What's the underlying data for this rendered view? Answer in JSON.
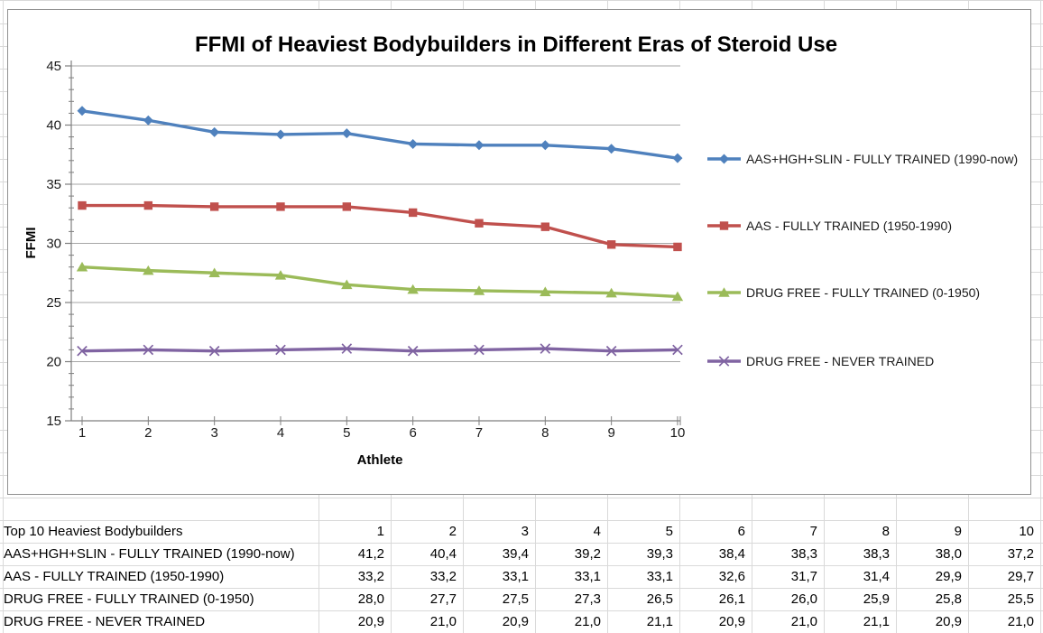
{
  "chart_data": {
    "type": "line",
    "title": "FFMI of Heaviest Bodybuilders in Different Eras of Steroid Use",
    "xlabel": "Athlete",
    "ylabel": "FFMI",
    "ylim": [
      15,
      45
    ],
    "ytick_step": 5,
    "grid": true,
    "legend_position": "right",
    "categories": [
      1,
      2,
      3,
      4,
      5,
      6,
      7,
      8,
      9,
      10
    ],
    "series": [
      {
        "name": "AAS+HGH+SLIN - FULLY TRAINED (1990-now)",
        "color": "#4F81BD",
        "marker": "diamond",
        "values": [
          41.2,
          40.4,
          39.4,
          39.2,
          39.3,
          38.4,
          38.3,
          38.3,
          38.0,
          37.2
        ]
      },
      {
        "name": "AAS - FULLY TRAINED (1950-1990)",
        "color": "#C0504D",
        "marker": "square",
        "values": [
          33.2,
          33.2,
          33.1,
          33.1,
          33.1,
          32.6,
          31.7,
          31.4,
          29.9,
          29.7
        ]
      },
      {
        "name": "DRUG FREE - FULLY TRAINED (0-1950)",
        "color": "#9BBB59",
        "marker": "triangle",
        "values": [
          28.0,
          27.7,
          27.5,
          27.3,
          26.5,
          26.1,
          26.0,
          25.9,
          25.8,
          25.5
        ]
      },
      {
        "name": "DRUG FREE - NEVER TRAINED",
        "color": "#8064A2",
        "marker": "x",
        "values": [
          20.9,
          21.0,
          20.9,
          21.0,
          21.1,
          20.9,
          21.0,
          21.1,
          20.9,
          21.0
        ]
      }
    ]
  },
  "table": {
    "header": {
      "label": "Top 10 Heaviest Bodybuilders",
      "columns": [
        "1",
        "2",
        "3",
        "4",
        "5",
        "6",
        "7",
        "8",
        "9",
        "10"
      ]
    },
    "rows": [
      {
        "label": "AAS+HGH+SLIN - FULLY TRAINED (1990-now)",
        "values": [
          "41,2",
          "40,4",
          "39,4",
          "39,2",
          "39,3",
          "38,4",
          "38,3",
          "38,3",
          "38,0",
          "37,2"
        ]
      },
      {
        "label": "AAS - FULLY TRAINED (1950-1990)",
        "values": [
          "33,2",
          "33,2",
          "33,1",
          "33,1",
          "33,1",
          "32,6",
          "31,7",
          "31,4",
          "29,9",
          "29,7"
        ]
      },
      {
        "label": "DRUG FREE - FULLY TRAINED (0-1950)",
        "values": [
          "28,0",
          "27,7",
          "27,5",
          "27,3",
          "26,5",
          "26,1",
          "26,0",
          "25,9",
          "25,8",
          "25,5"
        ]
      },
      {
        "label": "DRUG FREE - NEVER TRAINED",
        "values": [
          "20,9",
          "21,0",
          "20,9",
          "21,0",
          "21,1",
          "20,9",
          "21,0",
          "21,1",
          "20,9",
          "21,0"
        ]
      }
    ]
  }
}
